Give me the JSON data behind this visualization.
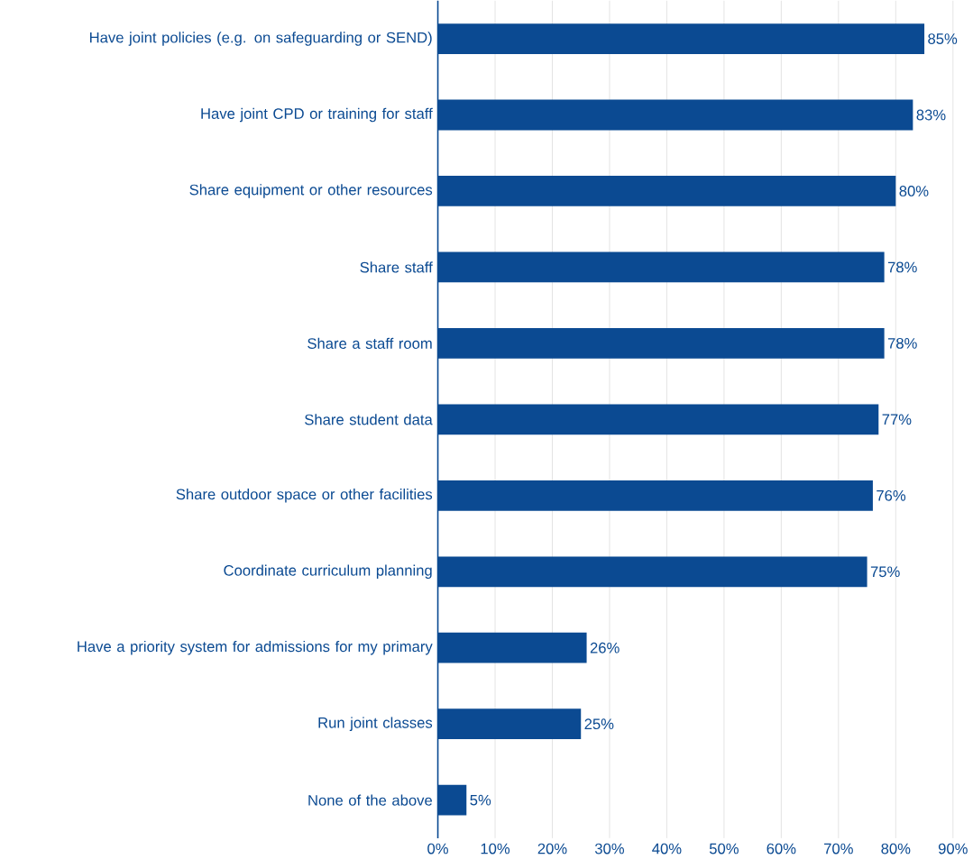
{
  "chart_data": {
    "type": "bar",
    "orientation": "horizontal",
    "categories": [
      "Have joint policies (e.g. on safeguarding or SEND)",
      "Have joint CPD or training for staff",
      "Share equipment or other resources",
      "Share staff",
      "Share a staff room",
      "Share student data",
      "Share outdoor space or other facilities",
      "Coordinate curriculum planning",
      "Have a priority system for admissions for my primary",
      "Run joint classes",
      "None of the above"
    ],
    "values": [
      85,
      83,
      80,
      78,
      78,
      77,
      76,
      75,
      26,
      25,
      5
    ],
    "value_labels": [
      "85%",
      "83%",
      "80%",
      "78%",
      "78%",
      "77%",
      "76%",
      "75%",
      "26%",
      "25%",
      "5%"
    ],
    "color": "#0b4a92",
    "xlim": [
      0,
      90
    ],
    "xticks": [
      {
        "value": 0,
        "label": "0%"
      },
      {
        "value": 10,
        "label": "10%"
      },
      {
        "value": 20,
        "label": "20%"
      },
      {
        "value": 30,
        "label": "30%"
      },
      {
        "value": 40,
        "label": "40%"
      },
      {
        "value": 50,
        "label": "50%"
      },
      {
        "value": 60,
        "label": "60%"
      },
      {
        "value": 70,
        "label": "70%"
      },
      {
        "value": 80,
        "label": "80%"
      },
      {
        "value": 90,
        "label": "90%"
      }
    ],
    "grid": "x"
  }
}
